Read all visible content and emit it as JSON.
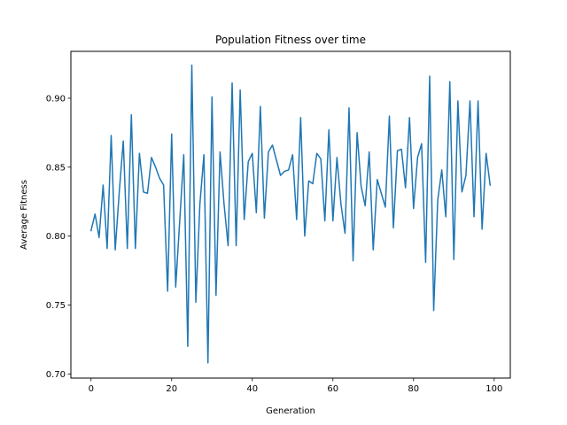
{
  "chart_data": {
    "type": "line",
    "title": "Population Fitness over time",
    "xlabel": "Generation",
    "ylabel": "Average Fitness",
    "xlim": [
      -5,
      104
    ],
    "ylim": [
      0.697,
      0.934
    ],
    "xticks": [
      0,
      20,
      40,
      60,
      80,
      100
    ],
    "xtick_labels": [
      "0",
      "20",
      "40",
      "60",
      "80",
      "100"
    ],
    "yticks": [
      0.7,
      0.75,
      0.8,
      0.85,
      0.9
    ],
    "ytick_labels": [
      "0.70",
      "0.75",
      "0.80",
      "0.85",
      "0.90"
    ],
    "grid": false,
    "line_color": "#1f77b4",
    "x": [
      0,
      1,
      2,
      3,
      4,
      5,
      6,
      7,
      8,
      9,
      10,
      11,
      12,
      13,
      14,
      15,
      16,
      17,
      18,
      19,
      20,
      21,
      22,
      23,
      24,
      25,
      26,
      27,
      28,
      29,
      30,
      31,
      32,
      33,
      34,
      35,
      36,
      37,
      38,
      39,
      40,
      41,
      42,
      43,
      44,
      45,
      46,
      47,
      48,
      49,
      50,
      51,
      52,
      53,
      54,
      55,
      56,
      57,
      58,
      59,
      60,
      61,
      62,
      63,
      64,
      65,
      66,
      67,
      68,
      69,
      70,
      71,
      72,
      73,
      74,
      75,
      76,
      77,
      78,
      79,
      80,
      81,
      82,
      83,
      84,
      85,
      86,
      87,
      88,
      89,
      90,
      91,
      92,
      93,
      94,
      95,
      96,
      97,
      98,
      99
    ],
    "y": [
      0.804,
      0.816,
      0.799,
      0.837,
      0.791,
      0.873,
      0.79,
      0.832,
      0.869,
      0.791,
      0.888,
      0.791,
      0.86,
      0.832,
      0.831,
      0.857,
      0.85,
      0.842,
      0.837,
      0.76,
      0.874,
      0.763,
      0.811,
      0.859,
      0.72,
      0.924,
      0.752,
      0.823,
      0.859,
      0.708,
      0.901,
      0.757,
      0.861,
      0.823,
      0.793,
      0.911,
      0.793,
      0.906,
      0.812,
      0.854,
      0.86,
      0.817,
      0.894,
      0.813,
      0.861,
      0.866,
      0.855,
      0.844,
      0.847,
      0.848,
      0.859,
      0.812,
      0.886,
      0.8,
      0.84,
      0.838,
      0.86,
      0.856,
      0.811,
      0.877,
      0.811,
      0.857,
      0.823,
      0.802,
      0.893,
      0.782,
      0.875,
      0.836,
      0.822,
      0.861,
      0.79,
      0.841,
      0.831,
      0.821,
      0.887,
      0.806,
      0.862,
      0.863,
      0.835,
      0.886,
      0.82,
      0.857,
      0.867,
      0.781,
      0.916,
      0.746,
      0.826,
      0.848,
      0.814,
      0.912,
      0.783,
      0.898,
      0.832,
      0.844,
      0.898,
      0.814,
      0.898,
      0.805,
      0.86,
      0.837
    ]
  }
}
